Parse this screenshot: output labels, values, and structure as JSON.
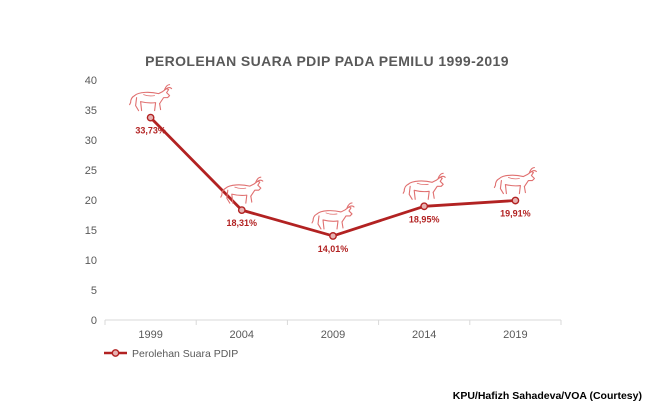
{
  "chart_data": {
    "type": "line",
    "title": "PEROLEHAN SUARA PDIP PADA PEMILU 1999-2019",
    "xlabel": "",
    "ylabel": "",
    "ylim": [
      0,
      40
    ],
    "yticks": [
      0,
      5,
      10,
      15,
      20,
      25,
      30,
      35,
      40
    ],
    "categories": [
      "1999",
      "2004",
      "2009",
      "2014",
      "2019"
    ],
    "series": [
      {
        "name": "Perolehan Suara PDIP",
        "values": [
          33.73,
          18.31,
          14.01,
          18.95,
          19.91
        ],
        "labels": [
          "33,73%",
          "18,31%",
          "14,01%",
          "18,95%",
          "19,91%"
        ],
        "color": "#b22222",
        "marker_icon": "bull-icon"
      }
    ],
    "grid": false,
    "legend_position": "bottom-left"
  },
  "credit": "KPU/Hafizh Sahadeva/VOA (Courtesy)"
}
